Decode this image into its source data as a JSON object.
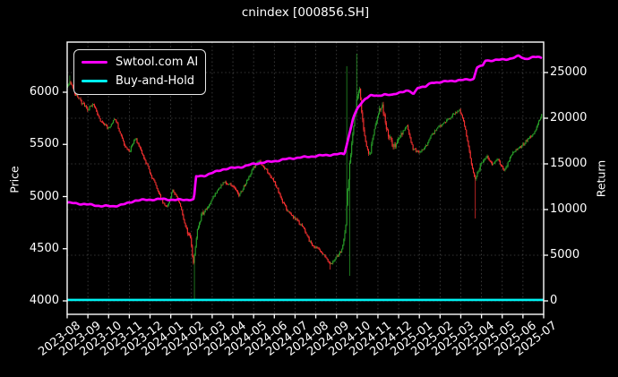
{
  "chart_data": {
    "type": "candlestick",
    "title": "cnindex [000856.SH]",
    "x_tick_labels": [
      "2023-08",
      "2023-09",
      "2023-10",
      "2023-11",
      "2023-12",
      "2024-01",
      "2024-02",
      "2024-03",
      "2024-04",
      "2024-05",
      "2024-06",
      "2024-07",
      "2024-08",
      "2024-09",
      "2024-10",
      "2024-11",
      "2024-12",
      "2025-01",
      "2025-02",
      "2025-03",
      "2025-04",
      "2025-05",
      "2025-06",
      "2025-07"
    ],
    "left_axis": {
      "label": "Price",
      "ticks": [
        4000,
        4500,
        5000,
        5500,
        6000
      ],
      "range": [
        3870,
        6490
      ]
    },
    "right_axis": {
      "label": "Return",
      "ticks": [
        0,
        5000,
        10000,
        15000,
        20000,
        25000
      ],
      "range": [
        -1470,
        28330
      ]
    },
    "grid": {
      "on": true,
      "style": "dotted"
    },
    "legend_position": "upper-left",
    "series": [
      {
        "name": "Swtool.com AI",
        "type": "line",
        "axis": "right",
        "color": "#ff00ff",
        "points": [
          [
            0,
            10750
          ],
          [
            0.8,
            10600
          ],
          [
            1.6,
            10400
          ],
          [
            2.2,
            10350
          ],
          [
            2.8,
            10600
          ],
          [
            3.3,
            11000
          ],
          [
            4,
            11080
          ],
          [
            4.6,
            11150
          ],
          [
            5.2,
            11050
          ],
          [
            6.12,
            11100
          ],
          [
            6.22,
            13600
          ],
          [
            6.6,
            13700
          ],
          [
            7,
            14000
          ],
          [
            7.5,
            14400
          ],
          [
            8,
            14550
          ],
          [
            8.5,
            14700
          ],
          [
            9,
            15000
          ],
          [
            9.5,
            15150
          ],
          [
            10,
            15300
          ],
          [
            10.8,
            15600
          ],
          [
            11.5,
            15750
          ],
          [
            12.2,
            15900
          ],
          [
            13,
            16050
          ],
          [
            13.38,
            16100
          ],
          [
            13.55,
            17600
          ],
          [
            13.8,
            20000
          ],
          [
            14.05,
            21200
          ],
          [
            14.4,
            22200
          ],
          [
            14.65,
            22500
          ],
          [
            15,
            22400
          ],
          [
            15.3,
            22650
          ],
          [
            15.7,
            22500
          ],
          [
            16.05,
            22850
          ],
          [
            16.35,
            23000
          ],
          [
            16.55,
            22900
          ],
          [
            16.72,
            22600
          ],
          [
            16.92,
            23400
          ],
          [
            17.3,
            23450
          ],
          [
            17.62,
            23900
          ],
          [
            18,
            23950
          ],
          [
            18.45,
            24050
          ],
          [
            18.85,
            24150
          ],
          [
            19.25,
            24200
          ],
          [
            19.62,
            24300
          ],
          [
            19.78,
            25600
          ],
          [
            20.05,
            25700
          ],
          [
            20.18,
            26300
          ],
          [
            20.6,
            26350
          ],
          [
            21,
            26400
          ],
          [
            21.45,
            26550
          ],
          [
            21.8,
            26800
          ],
          [
            22.1,
            26500
          ],
          [
            22.45,
            26650
          ],
          [
            22.7,
            26700
          ],
          [
            22.9,
            26620
          ]
        ]
      },
      {
        "name": "Buy-and-Hold",
        "type": "line",
        "axis": "right",
        "color": "#00f2f2",
        "constant_value": 100
      },
      {
        "name": "cnindex daily OHLC",
        "type": "candlestick",
        "axis": "left",
        "up_color": "#2aa32a",
        "down_color": "#ff3232",
        "bars_per_month": 21,
        "close_path": [
          [
            0,
            6050
          ],
          [
            0.15,
            6110
          ],
          [
            0.4,
            5980
          ],
          [
            0.7,
            5900
          ],
          [
            1,
            5830
          ],
          [
            1.25,
            5900
          ],
          [
            1.6,
            5720
          ],
          [
            2,
            5650
          ],
          [
            2.3,
            5760
          ],
          [
            2.7,
            5520
          ],
          [
            3,
            5430
          ],
          [
            3.3,
            5560
          ],
          [
            3.6,
            5420
          ],
          [
            4,
            5230
          ],
          [
            4.3,
            5100
          ],
          [
            4.6,
            4950
          ],
          [
            4.8,
            4890
          ],
          [
            5.1,
            5060
          ],
          [
            5.4,
            4950
          ],
          [
            5.7,
            4720
          ],
          [
            5.95,
            4590
          ],
          [
            6.1,
            4360
          ],
          [
            6.25,
            4640
          ],
          [
            6.5,
            4830
          ],
          [
            6.8,
            4900
          ],
          [
            7,
            4970
          ],
          [
            7.3,
            5080
          ],
          [
            7.6,
            5140
          ],
          [
            8,
            5110
          ],
          [
            8.3,
            5010
          ],
          [
            8.6,
            5120
          ],
          [
            9,
            5280
          ],
          [
            9.25,
            5340
          ],
          [
            9.6,
            5260
          ],
          [
            10,
            5150
          ],
          [
            10.4,
            4950
          ],
          [
            10.7,
            4840
          ],
          [
            11,
            4790
          ],
          [
            11.4,
            4700
          ],
          [
            11.7,
            4570
          ],
          [
            12,
            4510
          ],
          [
            12.4,
            4450
          ],
          [
            12.7,
            4350
          ],
          [
            13,
            4420
          ],
          [
            13.25,
            4480
          ],
          [
            13.42,
            4650
          ],
          [
            13.55,
            5080
          ],
          [
            13.7,
            5450
          ],
          [
            13.85,
            5700
          ],
          [
            13.98,
            5940
          ],
          [
            14.1,
            6040
          ],
          [
            14.25,
            5750
          ],
          [
            14.4,
            5520
          ],
          [
            14.6,
            5380
          ],
          [
            14.8,
            5620
          ],
          [
            15.05,
            5830
          ],
          [
            15.2,
            5880
          ],
          [
            15.45,
            5620
          ],
          [
            15.75,
            5470
          ],
          [
            16.1,
            5600
          ],
          [
            16.4,
            5690
          ],
          [
            16.7,
            5450
          ],
          [
            17,
            5430
          ],
          [
            17.3,
            5480
          ],
          [
            17.6,
            5590
          ],
          [
            17.9,
            5660
          ],
          [
            18.3,
            5720
          ],
          [
            18.7,
            5800
          ],
          [
            18.95,
            5830
          ],
          [
            19.2,
            5670
          ],
          [
            19.5,
            5320
          ],
          [
            19.68,
            5160
          ],
          [
            19.9,
            5280
          ],
          [
            20.2,
            5390
          ],
          [
            20.5,
            5310
          ],
          [
            20.8,
            5360
          ],
          [
            21.1,
            5240
          ],
          [
            21.5,
            5420
          ],
          [
            21.85,
            5470
          ],
          [
            22.2,
            5540
          ],
          [
            22.55,
            5610
          ],
          [
            22.9,
            5780
          ]
        ],
        "wick_extremes": [
          {
            "t": 0.12,
            "high": 6160
          },
          {
            "t": 6.14,
            "low": 4010
          },
          {
            "t": 12.7,
            "low": 4300
          },
          {
            "t": 13.5,
            "high": 6250
          },
          {
            "t": 13.62,
            "low": 4240
          },
          {
            "t": 13.96,
            "high": 6370
          },
          {
            "t": 19.7,
            "low": 4790
          }
        ]
      }
    ],
    "colors": {
      "background": "#000000",
      "text": "#ffffff",
      "grid_alpha": 0.28
    }
  }
}
